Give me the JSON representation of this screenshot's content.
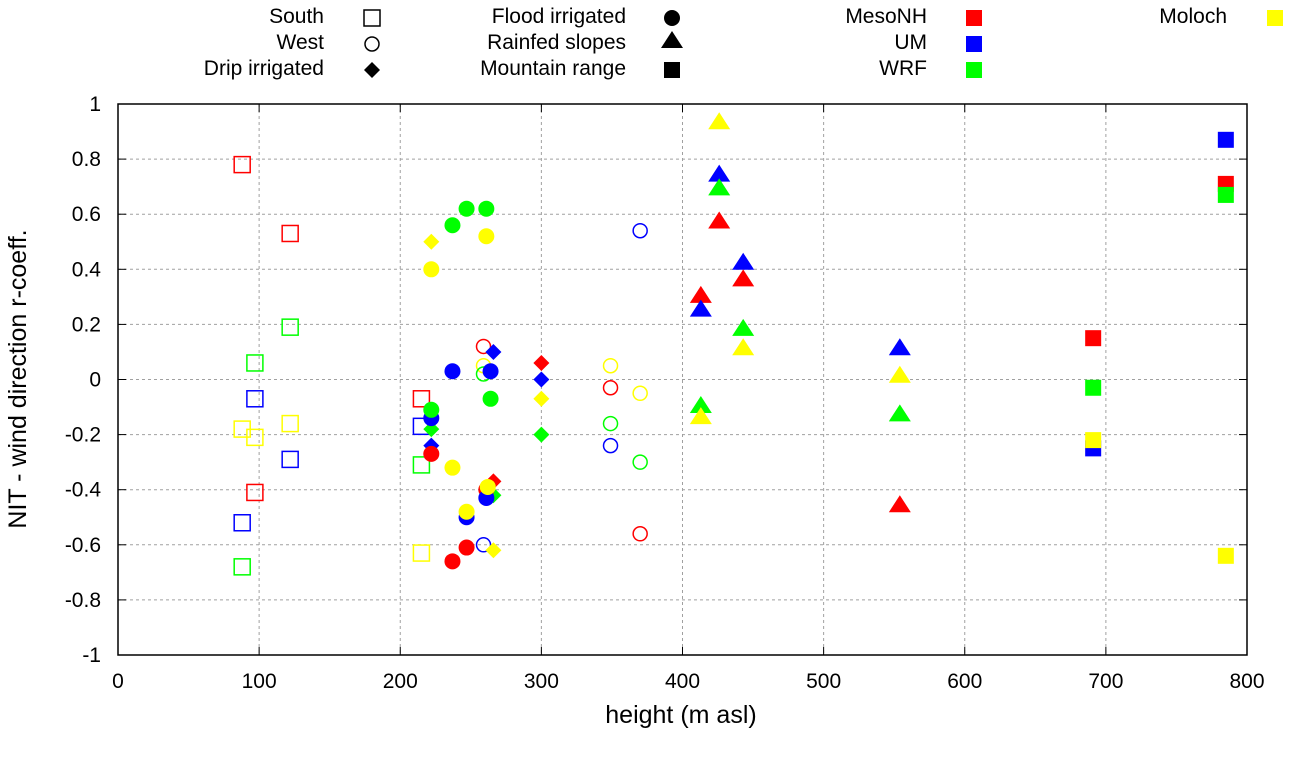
{
  "chart_data": {
    "type": "scatter",
    "title": "",
    "xlabel": "height (m asl)",
    "ylabel": "NIT - wind direction r-coeff.",
    "xlim": [
      0,
      800
    ],
    "ylim": [
      -1,
      1
    ],
    "xticks": [
      0,
      100,
      200,
      300,
      400,
      500,
      600,
      700,
      800
    ],
    "xtick_labels": [
      "0",
      "100",
      "200",
      "300",
      "400",
      "500",
      "600",
      "700",
      "800"
    ],
    "yticks": [
      -1,
      -0.8,
      -0.6,
      -0.4,
      -0.2,
      0,
      0.2,
      0.4,
      0.6,
      0.8,
      1
    ],
    "ytick_labels": [
      "-1",
      "-0.8",
      "-0.6",
      "-0.4",
      "-0.2",
      "0",
      "0.2",
      "0.4",
      "0.6",
      "0.8",
      "1"
    ],
    "grid": true,
    "legend_position": "top",
    "marker_legend": [
      {
        "label": "South",
        "marker": "open-square"
      },
      {
        "label": "West",
        "marker": "open-circle"
      },
      {
        "label": "Drip irrigated",
        "marker": "filled-diamond"
      },
      {
        "label": "Flood irrigated",
        "marker": "filled-circle"
      },
      {
        "label": "Rainfed slopes",
        "marker": "filled-triangle"
      },
      {
        "label": "Mountain range",
        "marker": "filled-square"
      }
    ],
    "color_legend": [
      {
        "label": "MesoNH",
        "color": "#ff0000"
      },
      {
        "label": "UM",
        "color": "#0000ff"
      },
      {
        "label": "WRF",
        "color": "#00ff00"
      },
      {
        "label": "Moloch",
        "color": "#ffff00"
      }
    ],
    "series": [
      {
        "name": "South",
        "marker": "open-square",
        "points": [
          {
            "model": "MesoNH",
            "x": 88,
            "y": 0.78
          },
          {
            "model": "MesoNH",
            "x": 122,
            "y": 0.53
          },
          {
            "model": "WRF",
            "x": 122,
            "y": 0.19
          },
          {
            "model": "WRF",
            "x": 97,
            "y": 0.06
          },
          {
            "model": "UM",
            "x": 97,
            "y": -0.07
          },
          {
            "model": "Moloch",
            "x": 88,
            "y": -0.18
          },
          {
            "model": "Moloch",
            "x": 97,
            "y": -0.21
          },
          {
            "model": "Moloch",
            "x": 122,
            "y": -0.16
          },
          {
            "model": "UM",
            "x": 122,
            "y": -0.29
          },
          {
            "model": "MesoNH",
            "x": 97,
            "y": -0.41
          },
          {
            "model": "UM",
            "x": 88,
            "y": -0.52
          },
          {
            "model": "WRF",
            "x": 88,
            "y": -0.68
          },
          {
            "model": "MesoNH",
            "x": 215,
            "y": -0.07
          },
          {
            "model": "UM",
            "x": 215,
            "y": -0.17
          },
          {
            "model": "WRF",
            "x": 215,
            "y": -0.31
          },
          {
            "model": "Moloch",
            "x": 215,
            "y": -0.63
          }
        ]
      },
      {
        "name": "West",
        "marker": "open-circle",
        "points": [
          {
            "model": "MesoNH",
            "x": 259,
            "y": 0.12
          },
          {
            "model": "Moloch",
            "x": 259,
            "y": 0.05
          },
          {
            "model": "WRF",
            "x": 259,
            "y": 0.02
          },
          {
            "model": "UM",
            "x": 259,
            "y": -0.6
          },
          {
            "model": "UM",
            "x": 370,
            "y": 0.54
          },
          {
            "model": "Moloch",
            "x": 349,
            "y": 0.05
          },
          {
            "model": "MesoNH",
            "x": 349,
            "y": -0.03
          },
          {
            "model": "WRF",
            "x": 349,
            "y": -0.16
          },
          {
            "model": "UM",
            "x": 349,
            "y": -0.24
          },
          {
            "model": "Moloch",
            "x": 370,
            "y": -0.05
          },
          {
            "model": "WRF",
            "x": 370,
            "y": -0.3
          },
          {
            "model": "MesoNH",
            "x": 370,
            "y": -0.56
          }
        ]
      },
      {
        "name": "Drip irrigated",
        "marker": "filled-diamond",
        "points": [
          {
            "model": "Moloch",
            "x": 222,
            "y": 0.5
          },
          {
            "model": "WRF",
            "x": 222,
            "y": -0.18
          },
          {
            "model": "UM",
            "x": 222,
            "y": -0.24
          },
          {
            "model": "UM",
            "x": 266,
            "y": 0.1
          },
          {
            "model": "MesoNH",
            "x": 300,
            "y": 0.06
          },
          {
            "model": "UM",
            "x": 300,
            "y": 0.0
          },
          {
            "model": "Moloch",
            "x": 300,
            "y": -0.07
          },
          {
            "model": "WRF",
            "x": 300,
            "y": -0.2
          },
          {
            "model": "MesoNH",
            "x": 266,
            "y": -0.37
          },
          {
            "model": "WRF",
            "x": 266,
            "y": -0.42
          },
          {
            "model": "Moloch",
            "x": 266,
            "y": -0.62
          }
        ]
      },
      {
        "name": "Flood irrigated",
        "marker": "filled-circle",
        "points": [
          {
            "model": "WRF",
            "x": 247,
            "y": 0.62
          },
          {
            "model": "WRF",
            "x": 261,
            "y": 0.62
          },
          {
            "model": "WRF",
            "x": 237,
            "y": 0.56
          },
          {
            "model": "Moloch",
            "x": 261,
            "y": 0.52
          },
          {
            "model": "Moloch",
            "x": 222,
            "y": 0.4
          },
          {
            "model": "UM",
            "x": 237,
            "y": 0.03
          },
          {
            "model": "UM",
            "x": 264,
            "y": 0.03
          },
          {
            "model": "WRF",
            "x": 264,
            "y": -0.07
          },
          {
            "model": "UM",
            "x": 222,
            "y": -0.14
          },
          {
            "model": "WRF",
            "x": 222,
            "y": -0.11
          },
          {
            "model": "MesoNH",
            "x": 222,
            "y": -0.27
          },
          {
            "model": "Moloch",
            "x": 237,
            "y": -0.32
          },
          {
            "model": "MesoNH",
            "x": 261,
            "y": -0.4
          },
          {
            "model": "UM",
            "x": 261,
            "y": -0.43
          },
          {
            "model": "Moloch",
            "x": 262,
            "y": -0.39
          },
          {
            "model": "UM",
            "x": 247,
            "y": -0.5
          },
          {
            "model": "Moloch",
            "x": 247,
            "y": -0.48
          },
          {
            "model": "MesoNH",
            "x": 247,
            "y": -0.61
          },
          {
            "model": "MesoNH",
            "x": 237,
            "y": -0.66
          }
        ]
      },
      {
        "name": "Rainfed slopes",
        "marker": "filled-triangle",
        "points": [
          {
            "model": "Moloch",
            "x": 426,
            "y": 0.93
          },
          {
            "model": "UM",
            "x": 426,
            "y": 0.74
          },
          {
            "model": "WRF",
            "x": 426,
            "y": 0.69
          },
          {
            "model": "MesoNH",
            "x": 426,
            "y": 0.57
          },
          {
            "model": "MesoNH",
            "x": 413,
            "y": 0.3
          },
          {
            "model": "UM",
            "x": 413,
            "y": 0.25
          },
          {
            "model": "UM",
            "x": 443,
            "y": 0.42
          },
          {
            "model": "MesoNH",
            "x": 443,
            "y": 0.36
          },
          {
            "model": "WRF",
            "x": 443,
            "y": 0.18
          },
          {
            "model": "Moloch",
            "x": 443,
            "y": 0.11
          },
          {
            "model": "WRF",
            "x": 413,
            "y": -0.1
          },
          {
            "model": "Moloch",
            "x": 413,
            "y": -0.14
          },
          {
            "model": "UM",
            "x": 554,
            "y": 0.11
          },
          {
            "model": "Moloch",
            "x": 554,
            "y": 0.01
          },
          {
            "model": "WRF",
            "x": 554,
            "y": -0.13
          },
          {
            "model": "MesoNH",
            "x": 554,
            "y": -0.46
          }
        ]
      },
      {
        "name": "Mountain range",
        "marker": "filled-square",
        "points": [
          {
            "model": "MesoNH",
            "x": 691,
            "y": 0.15
          },
          {
            "model": "WRF",
            "x": 691,
            "y": -0.03
          },
          {
            "model": "UM",
            "x": 691,
            "y": -0.25
          },
          {
            "model": "Moloch",
            "x": 691,
            "y": -0.22
          },
          {
            "model": "UM",
            "x": 785,
            "y": 0.87
          },
          {
            "model": "MesoNH",
            "x": 785,
            "y": 0.71
          },
          {
            "model": "WRF",
            "x": 785,
            "y": 0.67
          },
          {
            "model": "Moloch",
            "x": 785,
            "y": -0.64
          }
        ]
      }
    ]
  }
}
